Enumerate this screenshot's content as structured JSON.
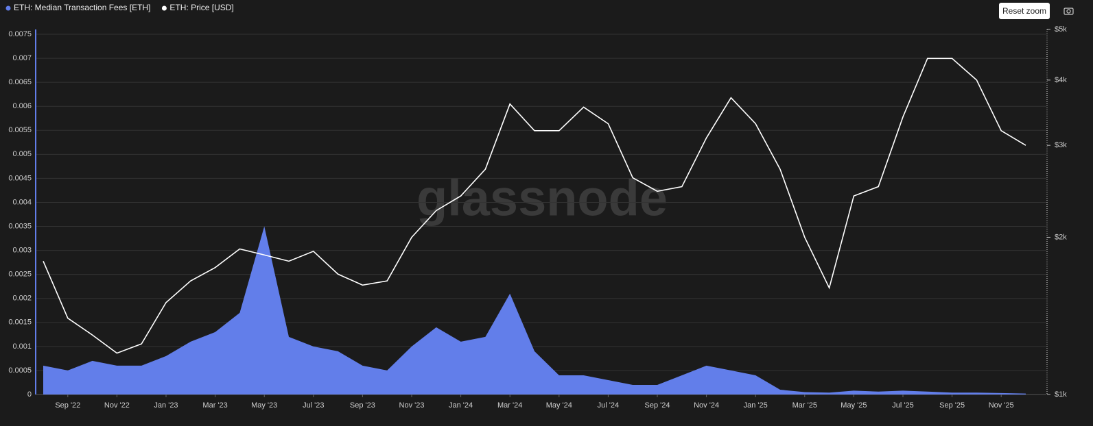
{
  "ui": {
    "reset_zoom": "Reset zoom"
  },
  "chart_data": {
    "type": "area-line",
    "watermark": "glassnode",
    "legend": "top-left",
    "grid": true,
    "y2_log": true,
    "x": [
      "2022-08",
      "2022-09",
      "2022-10",
      "2022-11",
      "2022-12",
      "2023-01",
      "2023-02",
      "2023-03",
      "2023-04",
      "2023-05",
      "2023-06",
      "2023-07",
      "2023-08",
      "2023-09",
      "2023-10",
      "2023-11",
      "2023-12",
      "2024-01",
      "2024-02",
      "2024-03",
      "2024-04",
      "2024-05",
      "2024-06",
      "2024-07",
      "2024-08",
      "2024-09",
      "2024-10",
      "2024-11",
      "2024-12",
      "2025-01",
      "2025-02",
      "2025-03",
      "2025-04",
      "2025-05",
      "2025-06",
      "2025-07",
      "2025-08",
      "2025-09",
      "2025-10",
      "2025-11",
      "2025-12"
    ],
    "xlim": [
      "2022-08",
      "2025-12"
    ],
    "xticks": [
      {
        "value": "2022-09",
        "label": "Sep '22"
      },
      {
        "value": "2022-11",
        "label": "Nov '22"
      },
      {
        "value": "2023-01",
        "label": "Jan '23"
      },
      {
        "value": "2023-03",
        "label": "Mar '23"
      },
      {
        "value": "2023-05",
        "label": "May '23"
      },
      {
        "value": "2023-07",
        "label": "Jul '23"
      },
      {
        "value": "2023-09",
        "label": "Sep '23"
      },
      {
        "value": "2023-11",
        "label": "Nov '23"
      },
      {
        "value": "2024-01",
        "label": "Jan '24"
      },
      {
        "value": "2024-03",
        "label": "Mar '24"
      },
      {
        "value": "2024-05",
        "label": "May '24"
      },
      {
        "value": "2024-07",
        "label": "Jul '24"
      },
      {
        "value": "2024-09",
        "label": "Sep '24"
      },
      {
        "value": "2024-11",
        "label": "Nov '24"
      },
      {
        "value": "2025-01",
        "label": "Jan '25"
      },
      {
        "value": "2025-03",
        "label": "Mar '25"
      },
      {
        "value": "2025-05",
        "label": "May '25"
      },
      {
        "value": "2025-07",
        "label": "Jul '25"
      },
      {
        "value": "2025-09",
        "label": "Sep '25"
      },
      {
        "value": "2025-11",
        "label": "Nov '25"
      }
    ],
    "ylim": [
      0,
      0.0076
    ],
    "yticks": [
      0,
      0.0005,
      0.001,
      0.0015,
      0.002,
      0.0025,
      0.003,
      0.0035,
      0.004,
      0.0045,
      0.005,
      0.0055,
      0.006,
      0.0065,
      0.007,
      0.0075
    ],
    "y2lim": [
      1000,
      5000
    ],
    "y2ticks": [
      {
        "value": 1000,
        "label": "$1k"
      },
      {
        "value": 2000,
        "label": "$2k"
      },
      {
        "value": 3000,
        "label": "$3k"
      },
      {
        "value": 4000,
        "label": "$4k"
      },
      {
        "value": 5000,
        "label": "$5k"
      }
    ],
    "series": [
      {
        "name": "ETH: Median Transaction Fees [ETH]",
        "color": "#627eea",
        "values": [
          0.0006,
          0.0005,
          0.0007,
          0.0006,
          0.0006,
          0.0008,
          0.0011,
          0.0013,
          0.0017,
          0.0035,
          0.0012,
          0.001,
          0.0009,
          0.0006,
          0.0005,
          0.001,
          0.0014,
          0.0011,
          0.0012,
          0.0021,
          0.0009,
          0.0004,
          0.0004,
          0.0003,
          0.0002,
          0.0002,
          0.0004,
          0.0006,
          0.0005,
          0.0004,
          0.0001,
          5e-05,
          4e-05,
          8e-05,
          6e-05,
          8e-05,
          6e-05,
          4e-05,
          4e-05,
          3e-05,
          2e-05
        ]
      },
      {
        "name": "ETH: Price [USD]",
        "color": "#ffffff",
        "axis": "y2",
        "values": [
          1800,
          1400,
          1300,
          1200,
          1250,
          1500,
          1650,
          1750,
          1900,
          1850,
          1800,
          1880,
          1700,
          1620,
          1650,
          2000,
          2250,
          2400,
          2700,
          3600,
          3200,
          3200,
          3550,
          3300,
          2600,
          2450,
          2500,
          3100,
          3700,
          3300,
          2700,
          2000,
          1600,
          2400,
          2500,
          3400,
          4400,
          4400,
          4000,
          3200,
          3000
        ]
      }
    ]
  }
}
